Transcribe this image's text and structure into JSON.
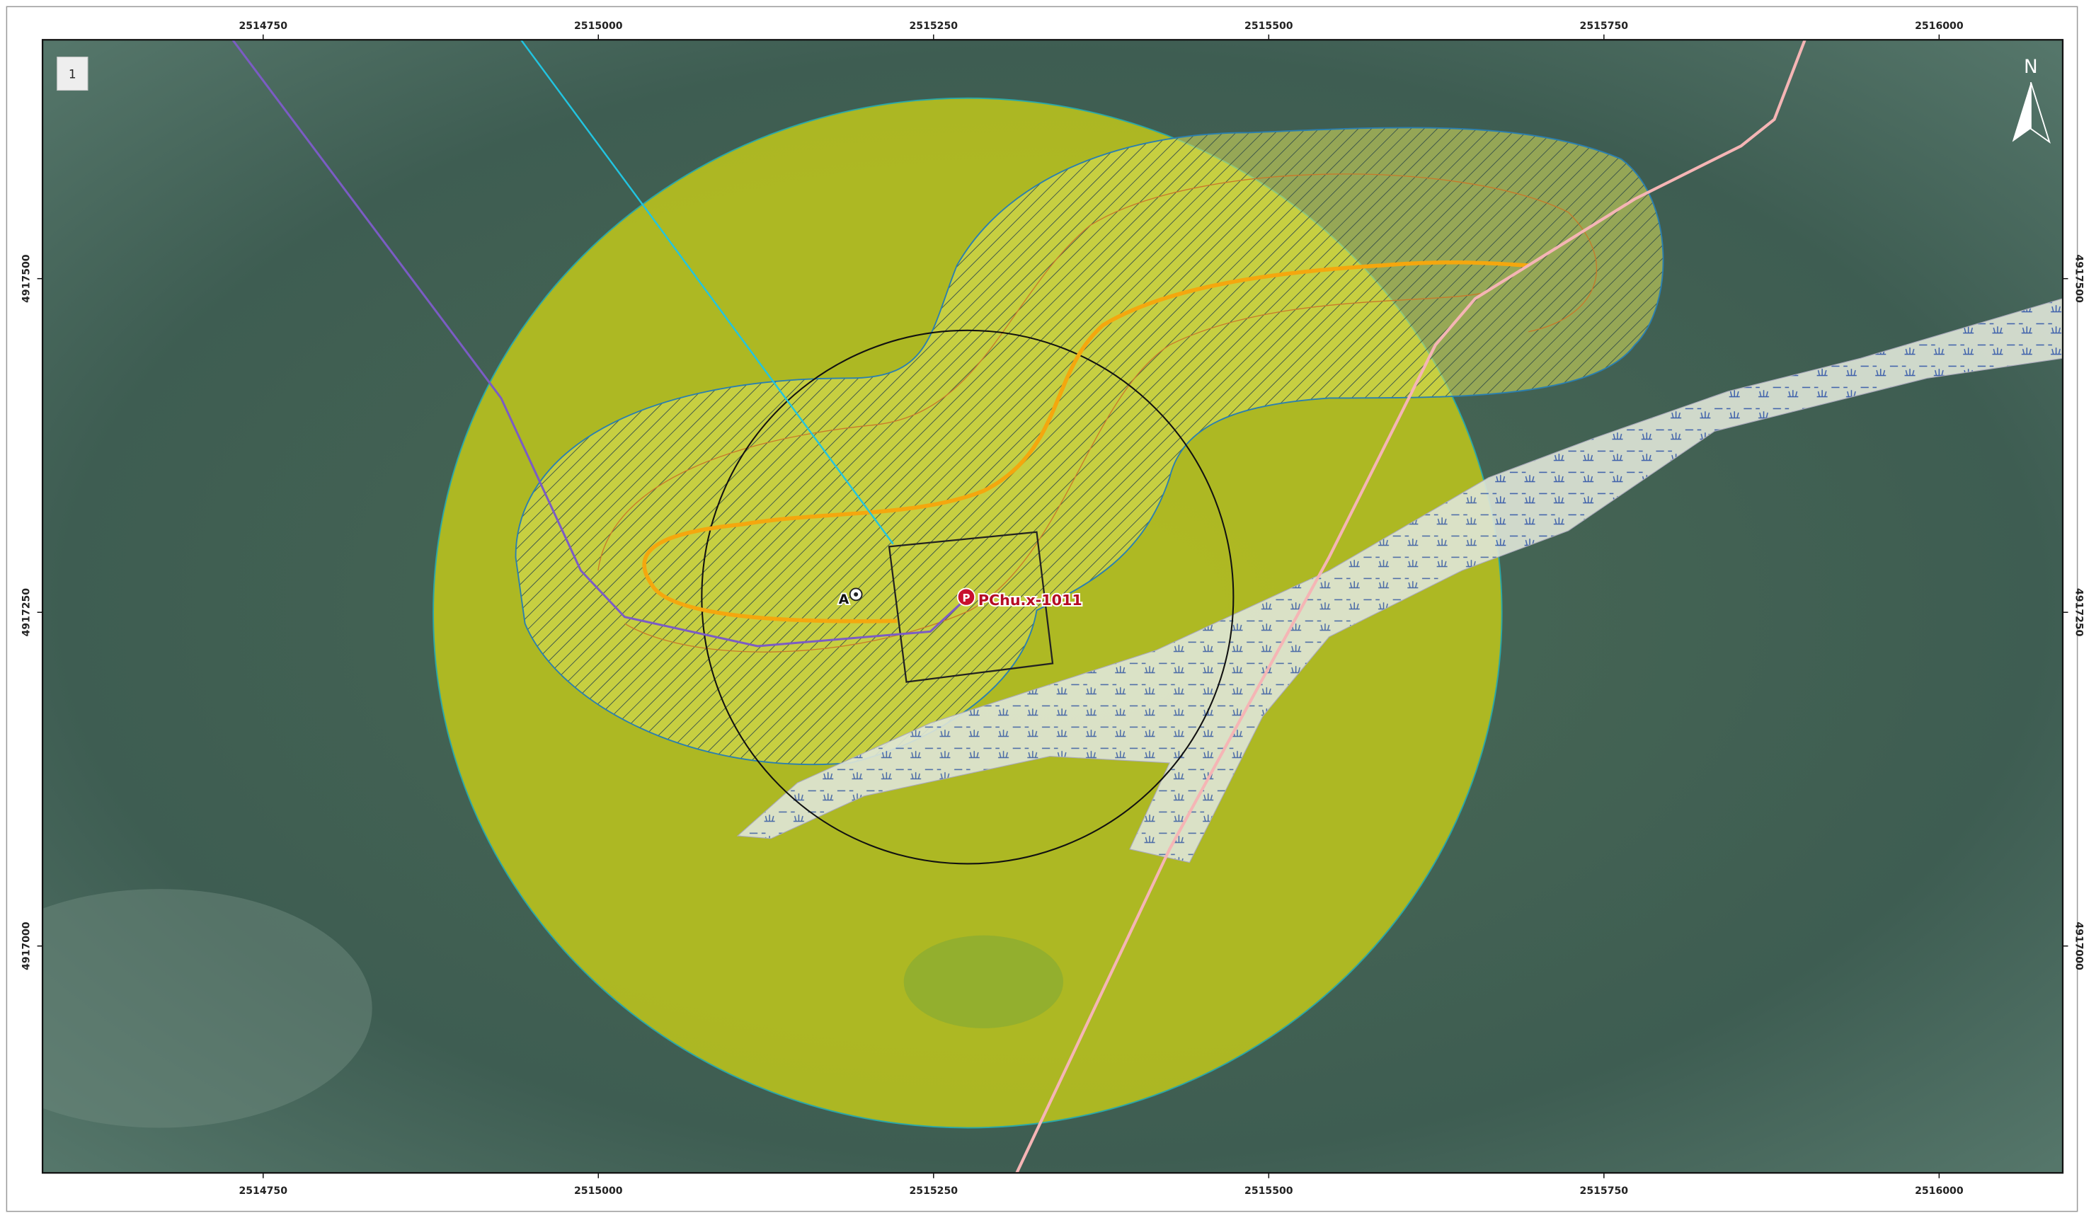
{
  "map": {
    "panel_label": "1",
    "north": "N",
    "x_ticks": [
      2514750,
      2515000,
      2515250,
      2515500,
      2515750,
      2516000
    ],
    "y_ticks": [
      4917500,
      4917250,
      4917000
    ],
    "labels": {
      "point_a": "A",
      "well_icon": "P",
      "well": "PChu.x-1011"
    }
  }
}
